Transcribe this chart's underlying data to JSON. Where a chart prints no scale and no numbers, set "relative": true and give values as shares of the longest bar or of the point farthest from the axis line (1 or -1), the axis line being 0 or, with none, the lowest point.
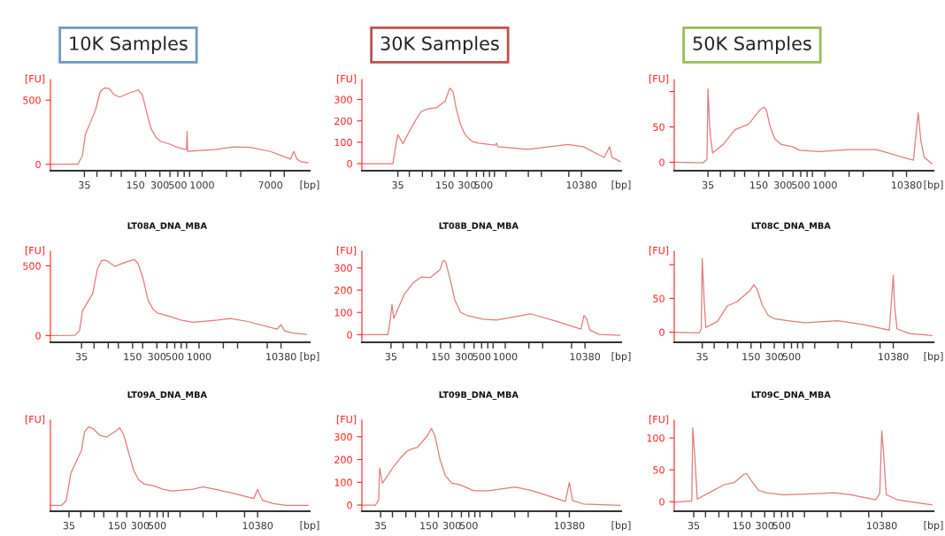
{
  "chart_data": [
    {
      "type": "line",
      "log": "x",
      "title": "10K Samples",
      "xlabel": "[bp]",
      "ylabel": "[FU]",
      "xlim": [
        13.3,
        21400
      ],
      "ylim": [
        -50,
        660
      ],
      "yticks": [
        0,
        500
      ],
      "xticks": [
        35,
        {
          "value": 50,
          "label": null
        },
        {
          "value": 75,
          "label": null
        },
        {
          "value": 100,
          "label": null
        },
        150,
        {
          "value": 200,
          "label": null
        },
        300,
        {
          "value": 400,
          "label": null
        },
        500,
        {
          "value": 600,
          "label": null
        },
        {
          "value": 700,
          "label": null
        },
        1000,
        {
          "value": 2000,
          "label": null
        },
        {
          "value": 3000,
          "label": null
        },
        7000,
        {
          "value": 10380,
          "label": null
        }
      ],
      "series": [
        {
          "color": "#e07a7a",
          "x": [
            13.3,
            29,
            33,
            36,
            48,
            55,
            62.5,
            71,
            81,
            96,
            125,
            162,
            182,
            207,
            233,
            269,
            308,
            405,
            493,
            615,
            642,
            652,
            661,
            959,
            1505,
            2460,
            3960,
            7000,
            12400,
            13600,
            14900,
            16400,
            20400
          ],
          "values": [
            0,
            0,
            65,
            232,
            423,
            567,
            596,
            591,
            543,
            524,
            555,
            579,
            543,
            400,
            280,
            208,
            179,
            155,
            132,
            117,
            117,
            256,
            100,
            108,
            117,
            136,
            132,
            100,
            41,
            100,
            41,
            22,
            12
          ]
        }
      ]
    },
    {
      "type": "line",
      "log": "x",
      "title": "30K Samples",
      "xlabel": "[bp]",
      "ylabel": "[FU]",
      "xlim": [
        11.5,
        35500
      ],
      "ylim": [
        -33,
        393
      ],
      "yticks": [
        0,
        100,
        200,
        300
      ],
      "xticks": [
        35,
        {
          "value": 50,
          "label": null
        },
        {
          "value": 75,
          "label": null
        },
        {
          "value": 100,
          "label": null
        },
        150,
        {
          "value": 200,
          "label": null
        },
        300,
        {
          "value": 400,
          "label": null
        },
        500,
        {
          "value": 600,
          "label": null
        },
        {
          "value": 700,
          "label": null
        },
        {
          "value": 1000,
          "label": null
        },
        {
          "value": 2000,
          "label": null
        },
        {
          "value": 3000,
          "label": null
        },
        {
          "value": 7000,
          "label": null
        },
        10380
      ],
      "series": [
        {
          "color": "#e07a7a",
          "x": [
            11.5,
            30,
            33,
            35,
            41,
            50,
            60,
            72,
            90,
            115,
            152,
            175,
            194,
            212,
            242,
            282,
            349,
            430,
            712,
            746,
            775,
            1959,
            6770,
            10990,
            20960,
            24800,
            26700,
            34400
          ],
          "values": [
            0,
            0,
            86,
            136,
            93,
            150,
            200,
            243,
            257,
            261,
            293,
            353,
            336,
            264,
            186,
            136,
            104,
            96,
            86,
            96,
            79,
            67,
            90,
            79,
            29,
            79,
            29,
            10
          ]
        }
      ]
    },
    {
      "type": "line",
      "log": "x",
      "title": "50K Samples",
      "xlabel": "[bp]",
      "ylabel": "[FU]",
      "xlim": [
        13.3,
        22500
      ],
      "ylim": [
        -12,
        117
      ],
      "yticks": [
        0,
        50,
        {
          "value": 100,
          "label": null
        }
      ],
      "xticks": [
        35,
        {
          "value": 50,
          "label": null
        },
        {
          "value": 75,
          "label": null
        },
        {
          "value": 100,
          "label": null
        },
        150,
        {
          "value": 200,
          "label": null
        },
        300,
        {
          "value": 400,
          "label": null
        },
        500,
        {
          "value": 600,
          "label": null
        },
        {
          "value": 700,
          "label": null
        },
        1000,
        {
          "value": 2000,
          "label": null
        },
        {
          "value": 3000,
          "label": null
        },
        {
          "value": 7000,
          "label": null
        },
        10380
      ],
      "series": [
        {
          "color": "#e07a7a",
          "x": [
            13.3,
            30,
            34,
            35,
            37,
            40,
            55,
            76,
            112,
            155,
            174,
            187,
            206,
            238,
            288,
            396,
            483,
            847,
            2010,
            4390,
            9350,
            12700,
            13700,
            14500,
            15700,
            17200,
            21500
          ],
          "values": [
            0,
            -1,
            4,
            104,
            43,
            13,
            26,
            46,
            54,
            74,
            78,
            74,
            52,
            33,
            25,
            22,
            17,
            15,
            18,
            18,
            7,
            3,
            43,
            70,
            30,
            7,
            -2
          ]
        }
      ]
    },
    {
      "type": "line",
      "log": "x",
      "title": "LT08A_DNA_MBA",
      "xlabel": "[bp]",
      "ylabel": "[FU]",
      "xlim": [
        14.4,
        23500
      ],
      "ylim": [
        -48,
        605
      ],
      "yticks": [
        0,
        500
      ],
      "xticks": [
        35,
        {
          "value": 50,
          "label": null
        },
        {
          "value": 75,
          "label": null
        },
        {
          "value": 100,
          "label": null
        },
        150,
        {
          "value": 200,
          "label": null
        },
        300,
        {
          "value": 400,
          "label": null
        },
        500,
        {
          "value": 600,
          "label": null
        },
        {
          "value": 700,
          "label": null
        },
        1000,
        {
          "value": 2000,
          "label": null
        },
        {
          "value": 3000,
          "label": null
        },
        {
          "value": 7000,
          "label": null
        },
        10380
      ],
      "series": [
        {
          "color": "#e07a7a",
          "x": [
            14.4,
            29,
            33,
            36,
            48,
            55,
            62,
            71,
            91,
            125,
            157,
            175,
            203,
            233,
            269,
            309,
            422,
            588,
            852,
            1695,
            2460,
            4020,
            9260,
            10380,
            11400,
            14200,
            21400
          ],
          "values": [
            0,
            2,
            35,
            178,
            300,
            476,
            539,
            539,
            496,
            528,
            546,
            518,
            408,
            254,
            189,
            160,
            140,
            112,
            96,
            112,
            123,
            101,
            46,
            79,
            35,
            20,
            9
          ]
        }
      ]
    },
    {
      "type": "line",
      "log": "x",
      "title": "LT08B_DNA_MBA",
      "xlabel": "[bp]",
      "ylabel": "[FU]",
      "xlim": [
        14.9,
        30000
      ],
      "ylim": [
        -34,
        375
      ],
      "yticks": [
        0,
        100,
        200,
        300
      ],
      "xticks": [
        35,
        {
          "value": 50,
          "label": null
        },
        {
          "value": 75,
          "label": null
        },
        {
          "value": 100,
          "label": null
        },
        150,
        {
          "value": 200,
          "label": null
        },
        300,
        {
          "value": 400,
          "label": null
        },
        500,
        {
          "value": 600,
          "label": null
        },
        {
          "value": 700,
          "label": null
        },
        1000,
        {
          "value": 2000,
          "label": null
        },
        {
          "value": 3000,
          "label": null
        },
        {
          "value": 7000,
          "label": null
        },
        10380
      ],
      "series": [
        {
          "color": "#e07a7a",
          "x": [
            14.9,
            32,
            34,
            36,
            38,
            52,
            66,
            85,
            110,
            148,
            162,
            174,
            202,
            228,
            271,
            323,
            522,
            773,
            2090,
            4660,
            9230,
            10080,
            10880,
            11970,
            15800,
            29000
          ],
          "values": [
            0,
            0,
            59,
            135,
            73,
            183,
            231,
            259,
            256,
            293,
            334,
            327,
            238,
            155,
            100,
            87,
            70,
            66,
            94,
            59,
            25,
            87,
            73,
            21,
            1,
            -3
          ]
        }
      ]
    },
    {
      "type": "line",
      "log": "x",
      "title": "LT08C_DNA_MBA",
      "xlabel": "[bp]",
      "ylabel": "[FU]",
      "xlim": [
        15.2,
        34400
      ],
      "ylim": [
        -15,
        120
      ],
      "yticks": [
        0,
        50,
        {
          "value": 100,
          "label": null
        }
      ],
      "xticks": [
        35,
        {
          "value": 50,
          "label": null
        },
        {
          "value": 75,
          "label": null
        },
        {
          "value": 100,
          "label": null
        },
        150,
        {
          "value": 200,
          "label": null
        },
        300,
        {
          "value": 400,
          "label": null
        },
        500,
        {
          "value": 600,
          "label": null
        },
        {
          "value": 700,
          "label": null
        },
        {
          "value": 1000,
          "label": null
        },
        {
          "value": 2000,
          "label": null
        },
        {
          "value": 3000,
          "label": null
        },
        {
          "value": 7000,
          "label": null
        },
        10380
      ],
      "series": [
        {
          "color": "#e07a7a",
          "x": [
            15.2,
            32,
            34,
            35,
            37,
            39,
            55,
            74,
            98,
            143,
            163,
            179,
            211,
            250,
            298,
            449,
            743,
            1980,
            4370,
            9220,
            10380,
            10800,
            11600,
            16900,
            32700
          ],
          "values": [
            0,
            -1,
            5,
            109,
            48,
            7,
            16,
            39,
            45,
            61,
            70,
            64,
            39,
            25,
            20,
            17,
            14,
            17,
            11,
            3,
            84,
            39,
            5,
            -2,
            -5
          ]
        }
      ]
    },
    {
      "type": "line",
      "log": "x",
      "title": "LT09A_DNA_MBA",
      "xlabel": "[bp]",
      "ylabel": "[FU]",
      "xlim": [
        20,
        49900
      ],
      "relative": true,
      "xticks": [
        35,
        {
          "value": 50,
          "label": null
        },
        {
          "value": 75,
          "label": null
        },
        {
          "value": 100,
          "label": null
        },
        150,
        {
          "value": 200,
          "label": null
        },
        300,
        {
          "value": 400,
          "label": null
        },
        500,
        {
          "value": 600,
          "label": null
        },
        {
          "value": 700,
          "label": null
        },
        {
          "value": 1000,
          "label": null
        },
        {
          "value": 2000,
          "label": null
        },
        {
          "value": 3000,
          "label": null
        },
        {
          "value": 7000,
          "label": null
        },
        10380
      ],
      "series": [
        {
          "color": "#e07a7a",
          "x": [
            20,
            28,
            32,
            34,
            37,
            51,
            56,
            63,
            72,
            89,
            110,
            148,
            162,
            182,
            214,
            248,
            288,
            341,
            457,
            595,
            778,
            1480,
            2000,
            2850,
            5040,
            9210,
            10380,
            10900,
            12000,
            16700,
            24500,
            47500
          ],
          "values": [
            0.07,
            0.07,
            0.12,
            0.25,
            0.45,
            0.72,
            0.94,
            1,
            0.98,
            0.9,
            0.88,
            0.96,
            0.99,
            0.91,
            0.68,
            0.48,
            0.37,
            0.32,
            0.3,
            0.26,
            0.24,
            0.26,
            0.29,
            0.26,
            0.21,
            0.15,
            0.26,
            0.21,
            0.13,
            0.09,
            0.07,
            0.07
          ]
        }
      ]
    },
    {
      "type": "line",
      "log": "x",
      "title": "LT09B_DNA_MBA",
      "xlabel": "[bp]",
      "ylabel": "[FU]",
      "xlim": [
        19.9,
        49500
      ],
      "ylim": [
        -27,
        373
      ],
      "yticks": [
        0,
        100,
        200,
        300
      ],
      "xticks": [
        35,
        {
          "value": 50,
          "label": null
        },
        {
          "value": 75,
          "label": null
        },
        {
          "value": 100,
          "label": null
        },
        150,
        {
          "value": 200,
          "label": null
        },
        300,
        {
          "value": 400,
          "label": null
        },
        500,
        {
          "value": 600,
          "label": null
        },
        {
          "value": 700,
          "label": null
        },
        {
          "value": 1000,
          "label": null
        },
        {
          "value": 2000,
          "label": null
        },
        {
          "value": 3000,
          "label": null
        },
        {
          "value": 7000,
          "label": null
        },
        10380
      ],
      "series": [
        {
          "color": "#e07a7a",
          "x": [
            19.9,
            30,
            33,
            34,
            37,
            52,
            65,
            78,
            92,
            106,
            143,
            162,
            180,
            211,
            246,
            300,
            379,
            583,
            890,
            2030,
            3420,
            9210,
            10380,
            11440,
            15900,
            47900
          ],
          "values": [
            0,
            0,
            23,
            163,
            96,
            170,
            210,
            237,
            248,
            253,
            304,
            337,
            304,
            197,
            130,
            96,
            90,
            63,
            63,
            79,
            63,
            16,
            100,
            20,
            5,
            -1
          ]
        }
      ]
    },
    {
      "type": "line",
      "log": "x",
      "title": "LT09C_DNA_MBA",
      "xlabel": "[bp]",
      "ylabel": "[FU]",
      "xlim": [
        19.4,
        49700
      ],
      "ylim": [
        -15,
        128
      ],
      "yticks": [
        0,
        50,
        100
      ],
      "xticks": [
        35,
        {
          "value": 50,
          "label": null
        },
        {
          "value": 75,
          "label": null
        },
        {
          "value": 100,
          "label": null
        },
        150,
        {
          "value": 200,
          "label": null
        },
        300,
        {
          "value": 400,
          "label": null
        },
        500,
        {
          "value": 600,
          "label": null
        },
        {
          "value": 700,
          "label": null
        },
        {
          "value": 1000,
          "label": null
        },
        {
          "value": 2000,
          "label": null
        },
        {
          "value": 3000,
          "label": null
        },
        {
          "value": 7000,
          "label": null
        },
        10380
      ],
      "series": [
        {
          "color": "#e07a7a",
          "x": [
            19.4,
            25,
            33,
            34,
            36,
            39,
            60,
            89,
            120,
            160,
            174,
            203,
            247,
            314,
            519,
            1018,
            2460,
            4090,
            8660,
            9770,
            10380,
            10990,
            11900,
            16600,
            47400
          ],
          "values": [
            -1,
            0,
            1,
            116,
            75,
            4,
            16,
            27,
            30,
            43,
            44,
            32,
            18,
            14,
            11,
            12,
            14,
            11,
            3,
            13,
            111,
            75,
            11,
            3,
            -5
          ]
        }
      ]
    }
  ]
}
